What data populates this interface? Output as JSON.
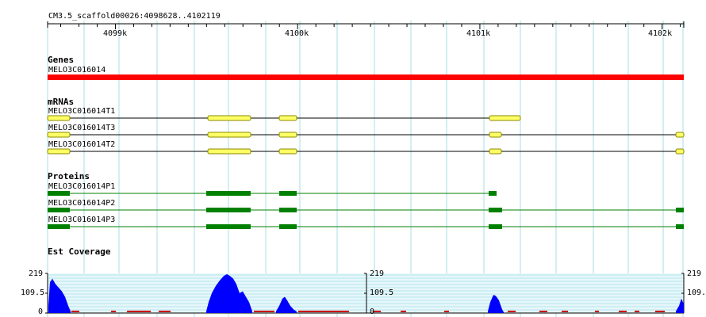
{
  "ruler": {
    "title": "CM3.5_scaffold00026:4098628..4102119",
    "ticks": [
      {
        "label": "4099k",
        "pos": 4099000
      },
      {
        "label": "4100k",
        "pos": 4100000
      },
      {
        "label": "4101k",
        "pos": 4101000
      },
      {
        "label": "4102k",
        "pos": 4102000
      }
    ],
    "start": 4098628,
    "end": 4102119
  },
  "tracks": {
    "genes": {
      "title": "Genes",
      "items": [
        {
          "name": "MELO3C016014",
          "color": "#ff0000"
        }
      ]
    },
    "mrnas": {
      "title": "mRNAs",
      "items": [
        {
          "name": "MELO3C016014T1"
        },
        {
          "name": "MELO3C016014T3"
        },
        {
          "name": "MELO3C016014T2"
        }
      ]
    },
    "proteins": {
      "title": "Proteins",
      "items": [
        {
          "name": "MELO3C016014P1"
        },
        {
          "name": "MELO3C016014P2"
        },
        {
          "name": "MELO3C016014P3"
        }
      ]
    },
    "coverage": {
      "title": "Est Coverage",
      "axis_labels": [
        "219",
        "109.5",
        "0"
      ],
      "max": 219,
      "color": "#0000ff",
      "low_color": "#cc0000"
    }
  },
  "colors": {
    "grid": "#a8dde6",
    "exon_fill": "#ffff66",
    "exon_stroke": "#8a8a00",
    "protein": "#008000"
  }
}
